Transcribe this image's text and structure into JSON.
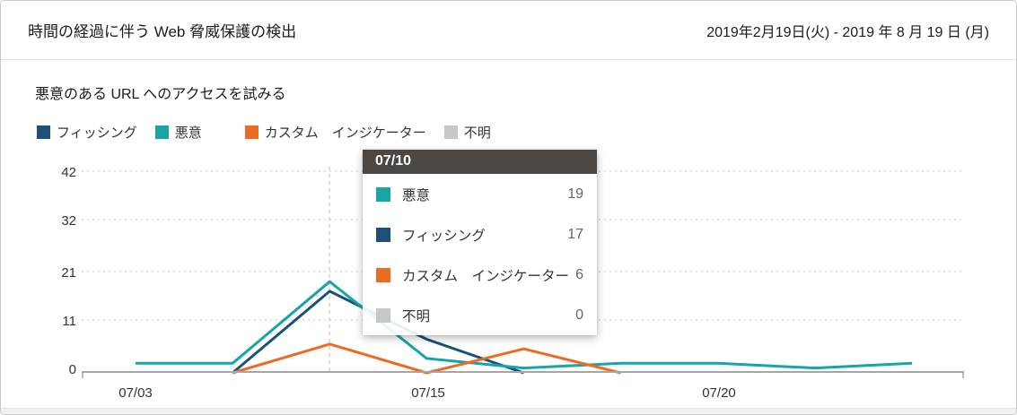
{
  "header": {
    "title": "時間の経過に伴う Web 脅威保護の検出",
    "date_range": "2019年2月19日(火) -  2019 年 8 月 19 日 (月)"
  },
  "chart": {
    "title": "悪意のある URL へのアクセスを試みる",
    "legend": [
      {
        "label": "フィッシング",
        "color": "#1c5177"
      },
      {
        "label": "悪意",
        "color": "#17a5a5"
      },
      {
        "label": "カスタム　インジケーター",
        "color": "#ec6b23"
      },
      {
        "label": "不明",
        "color": "#c8c8c8"
      }
    ]
  },
  "chart_data": {
    "type": "line",
    "title": "悪意のある URL へのアクセスを試みる",
    "ylim": [
      0,
      42
    ],
    "y_ticks": [
      "42",
      "32",
      "21",
      "11",
      "0"
    ],
    "grid": "horizontal-dashed",
    "legend_position": "top-left",
    "point_count": 9,
    "x_tick_labels": [
      {
        "index": 0,
        "label": "07/03"
      },
      {
        "index": 3,
        "label": "07/15"
      },
      {
        "index": 6,
        "label": "07/20"
      }
    ],
    "hover": {
      "index": 2,
      "label": "07/10"
    },
    "series": [
      {
        "name": "フィッシング",
        "color": "#1c5177",
        "values": [
          null,
          0,
          17,
          7,
          0,
          null,
          null,
          null,
          null
        ]
      },
      {
        "name": "悪意",
        "color": "#17a5a5",
        "values": [
          2,
          2,
          19,
          3,
          1,
          2,
          2,
          1,
          2
        ]
      },
      {
        "name": "カスタム　インジケーター",
        "color": "#ec6b23",
        "values": [
          null,
          0,
          6,
          0,
          5,
          0,
          null,
          null,
          null
        ]
      },
      {
        "name": "不明",
        "color": "#c8c8c8",
        "values": [
          null,
          null,
          0,
          null,
          null,
          null,
          null,
          null,
          null
        ]
      }
    ]
  },
  "tooltip": {
    "date": "07/10",
    "rows": [
      {
        "label": "悪意",
        "value": "19",
        "color": "#17a5a5"
      },
      {
        "label": "フィッシング",
        "value": "17",
        "color": "#1c5177"
      },
      {
        "label": "カスタム　インジケーター",
        "value": "6",
        "color": "#ec6b23"
      },
      {
        "label": "不明",
        "value": "0",
        "color": "#c8c8c8"
      }
    ]
  }
}
